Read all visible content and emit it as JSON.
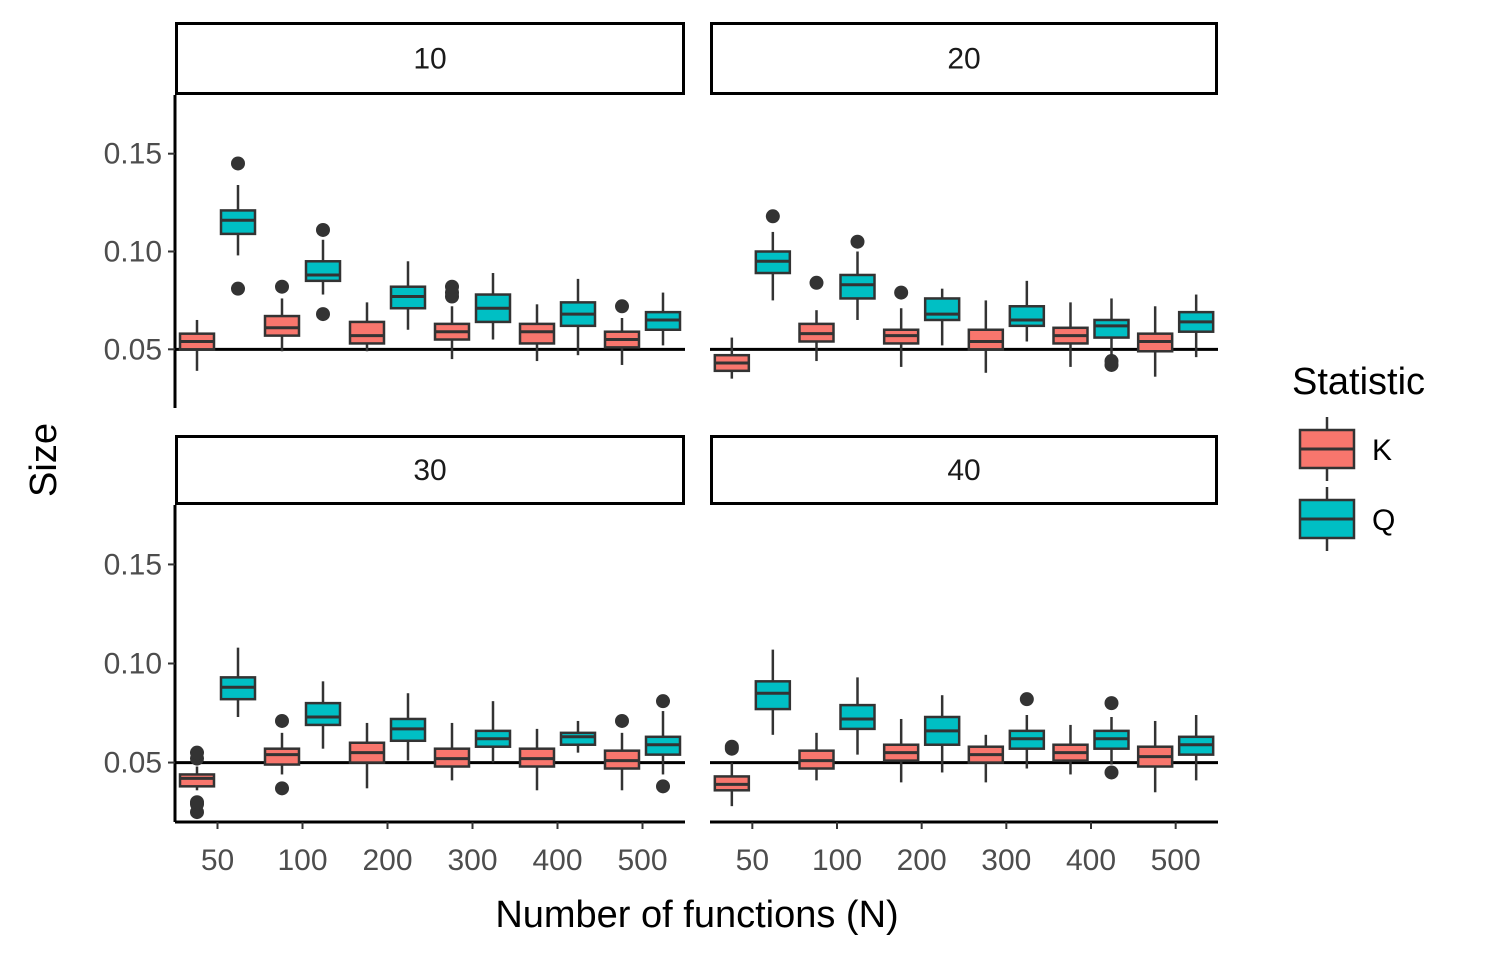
{
  "chart_data": {
    "type": "boxplot",
    "xlabel": "Number of functions (N)",
    "ylabel": "Size",
    "ylim": [
      0.02,
      0.18
    ],
    "yticks": [
      "0.05",
      "0.10",
      "0.15"
    ],
    "ytick_values": [
      0.05,
      0.1,
      0.15
    ],
    "reference_line": 0.05,
    "categories": [
      "50",
      "100",
      "200",
      "300",
      "400",
      "500"
    ],
    "legend": {
      "title": "Statistic",
      "placement": "right",
      "items": [
        {
          "label": "K",
          "color": "#F8766D"
        },
        {
          "label": "Q",
          "color": "#00BFC4"
        }
      ]
    },
    "colors": {
      "K": "#F8766D",
      "Q": "#00BFC4",
      "outline": "#333333"
    },
    "facets": [
      {
        "label": "10",
        "series": [
          {
            "name": "K",
            "boxes": [
              {
                "whislo": 0.039,
                "q1": 0.05,
                "med": 0.054,
                "q3": 0.058,
                "whishi": 0.065,
                "fliers": []
              },
              {
                "whislo": 0.049,
                "q1": 0.057,
                "med": 0.061,
                "q3": 0.067,
                "whishi": 0.076,
                "fliers": [
                  0.082
                ]
              },
              {
                "whislo": 0.049,
                "q1": 0.053,
                "med": 0.057,
                "q3": 0.064,
                "whishi": 0.074,
                "fliers": []
              },
              {
                "whislo": 0.045,
                "q1": 0.055,
                "med": 0.059,
                "q3": 0.063,
                "whishi": 0.072,
                "fliers": [
                  0.077,
                  0.079,
                  0.082
                ]
              },
              {
                "whislo": 0.044,
                "q1": 0.053,
                "med": 0.059,
                "q3": 0.063,
                "whishi": 0.073,
                "fliers": []
              },
              {
                "whislo": 0.042,
                "q1": 0.051,
                "med": 0.055,
                "q3": 0.059,
                "whishi": 0.066,
                "fliers": [
                  0.072
                ]
              }
            ]
          },
          {
            "name": "Q",
            "boxes": [
              {
                "whislo": 0.098,
                "q1": 0.109,
                "med": 0.116,
                "q3": 0.121,
                "whishi": 0.134,
                "fliers": [
                  0.081,
                  0.145
                ]
              },
              {
                "whislo": 0.078,
                "q1": 0.085,
                "med": 0.088,
                "q3": 0.095,
                "whishi": 0.106,
                "fliers": [
                  0.068,
                  0.111
                ]
              },
              {
                "whislo": 0.06,
                "q1": 0.071,
                "med": 0.077,
                "q3": 0.082,
                "whishi": 0.095,
                "fliers": []
              },
              {
                "whislo": 0.055,
                "q1": 0.064,
                "med": 0.071,
                "q3": 0.078,
                "whishi": 0.089,
                "fliers": []
              },
              {
                "whislo": 0.047,
                "q1": 0.062,
                "med": 0.068,
                "q3": 0.074,
                "whishi": 0.086,
                "fliers": []
              },
              {
                "whislo": 0.052,
                "q1": 0.06,
                "med": 0.065,
                "q3": 0.069,
                "whishi": 0.079,
                "fliers": []
              }
            ]
          }
        ]
      },
      {
        "label": "20",
        "series": [
          {
            "name": "K",
            "boxes": [
              {
                "whislo": 0.035,
                "q1": 0.039,
                "med": 0.043,
                "q3": 0.047,
                "whishi": 0.056,
                "fliers": []
              },
              {
                "whislo": 0.044,
                "q1": 0.054,
                "med": 0.058,
                "q3": 0.063,
                "whishi": 0.07,
                "fliers": [
                  0.084
                ]
              },
              {
                "whislo": 0.041,
                "q1": 0.053,
                "med": 0.057,
                "q3": 0.06,
                "whishi": 0.071,
                "fliers": [
                  0.079
                ]
              },
              {
                "whislo": 0.038,
                "q1": 0.05,
                "med": 0.054,
                "q3": 0.06,
                "whishi": 0.075,
                "fliers": []
              },
              {
                "whislo": 0.041,
                "q1": 0.053,
                "med": 0.057,
                "q3": 0.061,
                "whishi": 0.074,
                "fliers": []
              },
              {
                "whislo": 0.036,
                "q1": 0.049,
                "med": 0.054,
                "q3": 0.058,
                "whishi": 0.072,
                "fliers": []
              }
            ]
          },
          {
            "name": "Q",
            "boxes": [
              {
                "whislo": 0.075,
                "q1": 0.089,
                "med": 0.095,
                "q3": 0.1,
                "whishi": 0.11,
                "fliers": [
                  0.118
                ]
              },
              {
                "whislo": 0.065,
                "q1": 0.076,
                "med": 0.083,
                "q3": 0.088,
                "whishi": 0.1,
                "fliers": [
                  0.105
                ]
              },
              {
                "whislo": 0.052,
                "q1": 0.065,
                "med": 0.068,
                "q3": 0.076,
                "whishi": 0.081,
                "fliers": []
              },
              {
                "whislo": 0.054,
                "q1": 0.062,
                "med": 0.065,
                "q3": 0.072,
                "whishi": 0.085,
                "fliers": []
              },
              {
                "whislo": 0.047,
                "q1": 0.056,
                "med": 0.062,
                "q3": 0.065,
                "whishi": 0.076,
                "fliers": [
                  0.042,
                  0.044
                ]
              },
              {
                "whislo": 0.046,
                "q1": 0.059,
                "med": 0.064,
                "q3": 0.069,
                "whishi": 0.078,
                "fliers": []
              }
            ]
          }
        ]
      },
      {
        "label": "30",
        "series": [
          {
            "name": "K",
            "boxes": [
              {
                "whislo": 0.036,
                "q1": 0.038,
                "med": 0.042,
                "q3": 0.044,
                "whishi": 0.048,
                "fliers": [
                  0.025,
                  0.029,
                  0.03,
                  0.052,
                  0.055
                ]
              },
              {
                "whislo": 0.044,
                "q1": 0.049,
                "med": 0.054,
                "q3": 0.057,
                "whishi": 0.065,
                "fliers": [
                  0.037,
                  0.071
                ]
              },
              {
                "whislo": 0.037,
                "q1": 0.05,
                "med": 0.055,
                "q3": 0.06,
                "whishi": 0.07,
                "fliers": []
              },
              {
                "whislo": 0.041,
                "q1": 0.048,
                "med": 0.052,
                "q3": 0.057,
                "whishi": 0.07,
                "fliers": []
              },
              {
                "whislo": 0.036,
                "q1": 0.048,
                "med": 0.052,
                "q3": 0.057,
                "whishi": 0.067,
                "fliers": []
              },
              {
                "whislo": 0.036,
                "q1": 0.047,
                "med": 0.051,
                "q3": 0.056,
                "whishi": 0.065,
                "fliers": [
                  0.071
                ]
              }
            ]
          },
          {
            "name": "Q",
            "boxes": [
              {
                "whislo": 0.073,
                "q1": 0.082,
                "med": 0.088,
                "q3": 0.093,
                "whishi": 0.108,
                "fliers": []
              },
              {
                "whislo": 0.057,
                "q1": 0.069,
                "med": 0.073,
                "q3": 0.08,
                "whishi": 0.091,
                "fliers": []
              },
              {
                "whislo": 0.051,
                "q1": 0.061,
                "med": 0.067,
                "q3": 0.072,
                "whishi": 0.085,
                "fliers": []
              },
              {
                "whislo": 0.05,
                "q1": 0.058,
                "med": 0.062,
                "q3": 0.066,
                "whishi": 0.081,
                "fliers": []
              },
              {
                "whislo": 0.055,
                "q1": 0.059,
                "med": 0.063,
                "q3": 0.065,
                "whishi": 0.071,
                "fliers": []
              },
              {
                "whislo": 0.044,
                "q1": 0.054,
                "med": 0.059,
                "q3": 0.063,
                "whishi": 0.076,
                "fliers": [
                  0.038,
                  0.081
                ]
              }
            ]
          }
        ]
      },
      {
        "label": "40",
        "series": [
          {
            "name": "K",
            "boxes": [
              {
                "whislo": 0.028,
                "q1": 0.036,
                "med": 0.039,
                "q3": 0.043,
                "whishi": 0.05,
                "fliers": [
                  0.057,
                  0.058
                ]
              },
              {
                "whislo": 0.041,
                "q1": 0.047,
                "med": 0.051,
                "q3": 0.056,
                "whishi": 0.065,
                "fliers": []
              },
              {
                "whislo": 0.04,
                "q1": 0.051,
                "med": 0.055,
                "q3": 0.059,
                "whishi": 0.072,
                "fliers": []
              },
              {
                "whislo": 0.04,
                "q1": 0.05,
                "med": 0.054,
                "q3": 0.058,
                "whishi": 0.064,
                "fliers": []
              },
              {
                "whislo": 0.044,
                "q1": 0.051,
                "med": 0.055,
                "q3": 0.059,
                "whishi": 0.069,
                "fliers": []
              },
              {
                "whislo": 0.035,
                "q1": 0.048,
                "med": 0.053,
                "q3": 0.058,
                "whishi": 0.071,
                "fliers": []
              }
            ]
          },
          {
            "name": "Q",
            "boxes": [
              {
                "whislo": 0.064,
                "q1": 0.077,
                "med": 0.085,
                "q3": 0.091,
                "whishi": 0.107,
                "fliers": []
              },
              {
                "whislo": 0.054,
                "q1": 0.067,
                "med": 0.072,
                "q3": 0.079,
                "whishi": 0.093,
                "fliers": []
              },
              {
                "whislo": 0.045,
                "q1": 0.059,
                "med": 0.066,
                "q3": 0.073,
                "whishi": 0.084,
                "fliers": []
              },
              {
                "whislo": 0.047,
                "q1": 0.057,
                "med": 0.062,
                "q3": 0.066,
                "whishi": 0.074,
                "fliers": [
                  0.082
                ]
              },
              {
                "whislo": 0.049,
                "q1": 0.057,
                "med": 0.062,
                "q3": 0.066,
                "whishi": 0.073,
                "fliers": [
                  0.045,
                  0.08
                ]
              },
              {
                "whislo": 0.041,
                "q1": 0.054,
                "med": 0.059,
                "q3": 0.063,
                "whishi": 0.074,
                "fliers": []
              }
            ]
          }
        ]
      }
    ]
  }
}
